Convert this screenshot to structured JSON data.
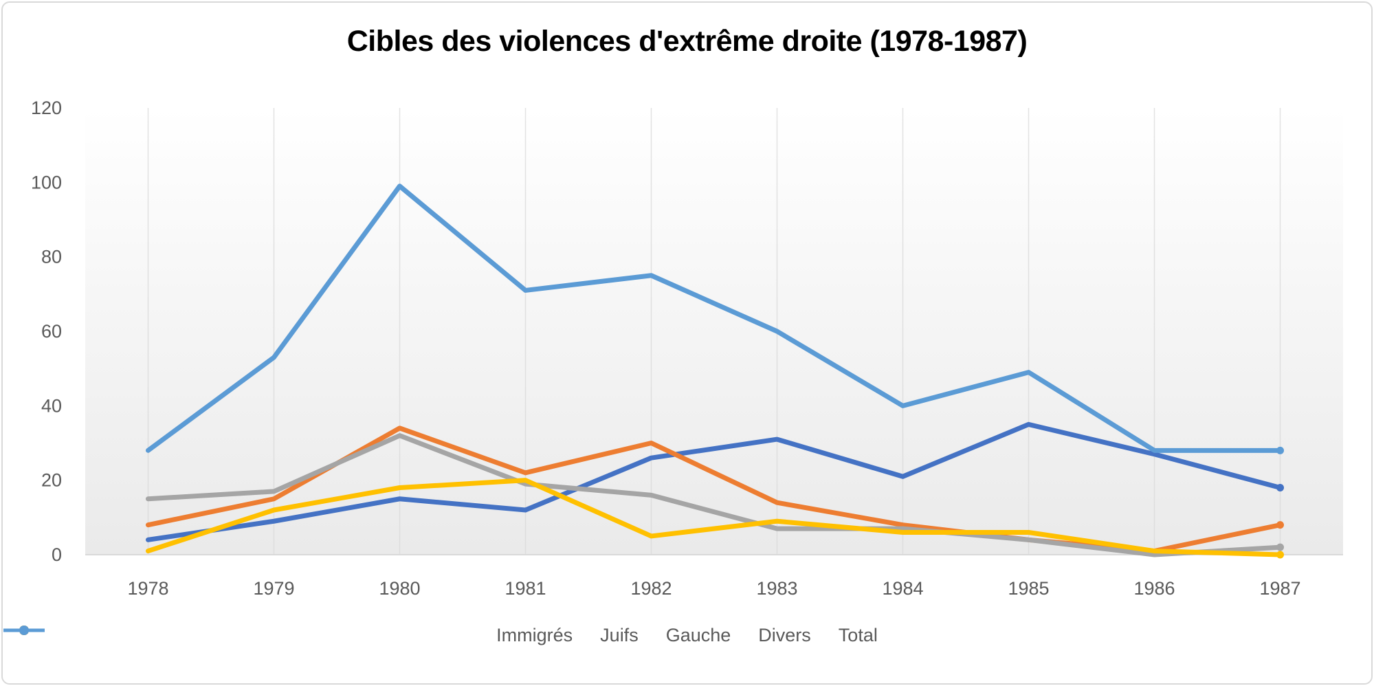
{
  "chart_data": {
    "type": "line",
    "title": "Cibles des violences d'extrême droite (1978-1987)",
    "x": [
      "1978",
      "1979",
      "1980",
      "1981",
      "1982",
      "1983",
      "1984",
      "1985",
      "1986",
      "1987"
    ],
    "series": [
      {
        "name": "Immigrés",
        "color": "#4472C4",
        "values": [
          4,
          9,
          15,
          12,
          26,
          31,
          21,
          35,
          27,
          18
        ]
      },
      {
        "name": "Juifs",
        "color": "#ED7D31",
        "values": [
          8,
          15,
          34,
          22,
          30,
          14,
          8,
          4,
          1,
          8
        ]
      },
      {
        "name": "Gauche",
        "color": "#A5A5A5",
        "values": [
          15,
          17,
          32,
          19,
          16,
          7,
          7,
          4,
          0,
          2
        ]
      },
      {
        "name": "Divers",
        "color": "#FFC000",
        "values": [
          1,
          12,
          18,
          20,
          5,
          9,
          6,
          6,
          1,
          0
        ]
      },
      {
        "name": "Total",
        "color": "#5B9BD5",
        "values": [
          28,
          53,
          99,
          71,
          75,
          60,
          40,
          49,
          28,
          28
        ]
      }
    ],
    "xlabel": "",
    "ylabel": "",
    "ylim": [
      0,
      120
    ],
    "yticks": [
      0,
      20,
      40,
      60,
      80,
      100,
      120
    ],
    "grid": "vertical-only",
    "legend_position": "bottom",
    "plot_background": {
      "top": "#ffffff",
      "bottom": "#eaeaea"
    },
    "gridline_color": "#d9d9d9",
    "axis_label_color": "#595959"
  }
}
